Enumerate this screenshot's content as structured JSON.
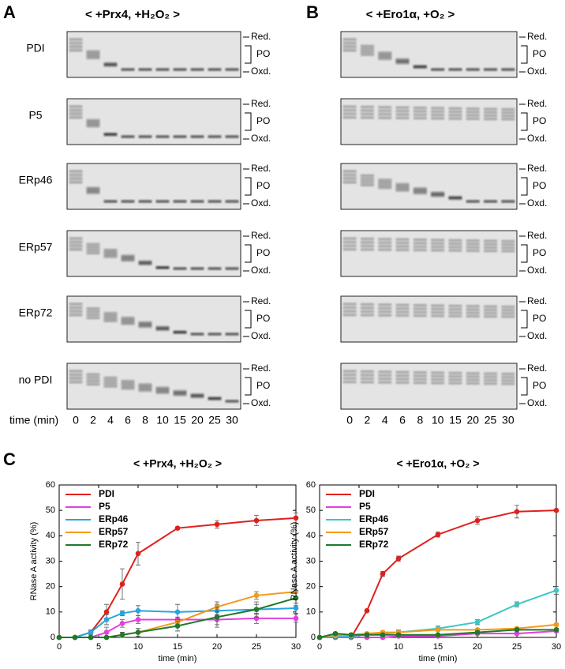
{
  "panel_labels": [
    "A",
    "B",
    "C"
  ],
  "gels": {
    "band_labels": [
      "Red.",
      "PO",
      "Oxd."
    ],
    "time_label": "time (min)",
    "times": [
      0,
      2,
      4,
      6,
      8,
      10,
      15,
      20,
      25,
      30
    ],
    "panel_a": {
      "title": "< +Prx4, +H₂O₂ >",
      "rows": [
        "PDI",
        "P5",
        "ERp46",
        "ERp57",
        "ERp72",
        "no PDI"
      ]
    },
    "panel_b": {
      "title": "< +Ero1α, +O₂ >"
    }
  },
  "chart_data": [
    {
      "type": "line",
      "title": "< +Prx4, +H₂O₂ >",
      "xlabel": "time (min)",
      "ylabel": "RNase A activity (%)",
      "x": [
        0,
        2,
        4,
        6,
        8,
        10,
        15,
        20,
        25,
        30
      ],
      "xlim": [
        0,
        30
      ],
      "xticks": [
        0,
        5,
        10,
        15,
        20,
        25,
        30
      ],
      "ylim": [
        0,
        60
      ],
      "yticks": [
        0,
        10,
        20,
        30,
        40,
        50,
        60
      ],
      "legend": "upper left",
      "series": [
        {
          "name": "PDI",
          "color": "#e0201c",
          "values": [
            0,
            0,
            2,
            10,
            21,
            33,
            43,
            44.5,
            46,
            47
          ],
          "errors": [
            0,
            0.5,
            1,
            3,
            6,
            4.5,
            0.5,
            1.5,
            2,
            2
          ]
        },
        {
          "name": "P5",
          "color": "#e43ee0",
          "values": [
            0,
            0,
            0,
            2,
            5.5,
            7,
            7,
            7,
            7.5,
            7.5
          ],
          "errors": [
            0,
            0.5,
            0.5,
            2,
            1.5,
            1.5,
            1,
            2,
            2,
            1.5
          ]
        },
        {
          "name": "ERp46",
          "color": "#2aa4e0",
          "values": [
            0,
            0,
            2,
            7,
            9.5,
            10.5,
            10,
            10.5,
            11,
            11.5
          ],
          "errors": [
            0,
            0.5,
            1,
            2,
            1,
            2,
            3,
            2.5,
            2,
            2
          ]
        },
        {
          "name": "ERp57",
          "color": "#f39a1b",
          "values": [
            0,
            0,
            0,
            0,
            1,
            2,
            6,
            12,
            16.5,
            18
          ],
          "errors": [
            0,
            0.5,
            0.5,
            0.5,
            1,
            1.5,
            1,
            2,
            1.5,
            2.5
          ]
        },
        {
          "name": "ERp72",
          "color": "#1e7a2a",
          "values": [
            0,
            0,
            0,
            0,
            1,
            2,
            4.5,
            8,
            11,
            15.5
          ],
          "errors": [
            0,
            0.5,
            0.5,
            0.5,
            1,
            1.5,
            2,
            4,
            3,
            3
          ]
        }
      ]
    },
    {
      "type": "line",
      "title": "< +Ero1α, +O₂ >",
      "xlabel": "time (min)",
      "ylabel": "RNase A activity (%)",
      "x": [
        0,
        2,
        4,
        6,
        8,
        10,
        15,
        20,
        25,
        30
      ],
      "xlim": [
        0,
        30
      ],
      "xticks": [
        0,
        5,
        10,
        15,
        20,
        25,
        30
      ],
      "ylim": [
        0,
        60
      ],
      "yticks": [
        0,
        10,
        20,
        30,
        40,
        50,
        60
      ],
      "legend": "upper left",
      "series": [
        {
          "name": "PDI",
          "color": "#e0201c",
          "values": [
            0,
            0,
            0,
            10.5,
            25,
            31,
            40.5,
            46,
            49.5,
            50
          ],
          "errors": [
            0,
            0.3,
            0.3,
            0.5,
            1,
            1,
            1,
            1.5,
            2.5,
            0.5
          ]
        },
        {
          "name": "P5",
          "color": "#e43ee0",
          "values": [
            0,
            0,
            0,
            0,
            0,
            0.5,
            0.5,
            1.5,
            1.5,
            2.5
          ],
          "errors": [
            0,
            0.3,
            0.3,
            0.3,
            0.3,
            0.3,
            0.3,
            0.5,
            0.5,
            0.5
          ]
        },
        {
          "name": "ERp46",
          "color": "#3cc6c6",
          "values": [
            0,
            0.5,
            0.5,
            1,
            1.5,
            2,
            3.5,
            6,
            13,
            18.5
          ],
          "errors": [
            0,
            1,
            1,
            1,
            1,
            1,
            1,
            1,
            1,
            1.5
          ]
        },
        {
          "name": "ERp57",
          "color": "#f39a1b",
          "values": [
            0,
            1,
            1,
            1.5,
            2,
            2,
            3,
            3,
            3.5,
            5
          ],
          "errors": [
            0,
            0.5,
            0.5,
            0.5,
            0.5,
            0.5,
            0.5,
            0.5,
            0.5,
            0.5
          ]
        },
        {
          "name": "ERp72",
          "color": "#1e7a2a",
          "values": [
            0,
            1.5,
            1,
            1,
            1,
            1,
            1,
            2,
            3,
            3
          ],
          "errors": [
            0,
            0.5,
            0.5,
            0.5,
            0.5,
            0.5,
            0.5,
            0.5,
            0.5,
            0.5
          ]
        }
      ]
    }
  ]
}
